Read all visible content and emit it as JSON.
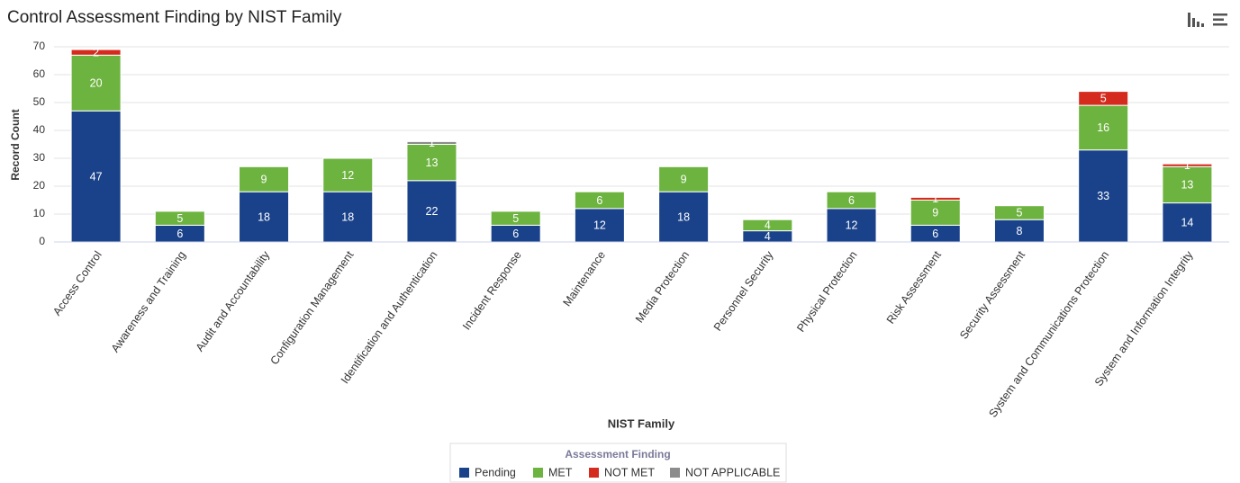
{
  "chart_data": {
    "type": "stacked_bar",
    "title": "Control Assessment Finding by NIST Family",
    "x_label": "NIST Family",
    "y_label": "Record Count",
    "legend_title": "Assessment Finding",
    "categories": [
      "Access Control",
      "Awareness and Training",
      "Audit and Accountability",
      "Configuration Management",
      "Identification and Authentication",
      "Incident Response",
      "Maintenance",
      "Media Protection",
      "Personnel Security",
      "Physical Protection",
      "Risk Assessment",
      "Security Assessment",
      "System and Communications Protection",
      "System and Information Integrity"
    ],
    "series": [
      {
        "name": "Pending",
        "color": "#1a428a",
        "values": [
          47,
          6,
          18,
          18,
          22,
          6,
          12,
          18,
          4,
          12,
          6,
          8,
          33,
          14
        ]
      },
      {
        "name": "MET",
        "color": "#6db33f",
        "values": [
          20,
          5,
          9,
          12,
          13,
          5,
          6,
          9,
          4,
          6,
          9,
          5,
          16,
          13
        ]
      },
      {
        "name": "NOT MET",
        "color": "#d52b1e",
        "values": [
          2,
          null,
          null,
          null,
          null,
          null,
          null,
          null,
          null,
          null,
          1,
          null,
          5,
          1
        ]
      },
      {
        "name": "NOT APPLICABLE",
        "color": "#8c8c8c",
        "values": [
          null,
          null,
          null,
          null,
          1,
          null,
          null,
          null,
          null,
          null,
          null,
          null,
          null,
          null
        ]
      }
    ],
    "ylim": [
      0,
      70
    ],
    "yticks": [
      0,
      10,
      20,
      30,
      40,
      50,
      60,
      70
    ],
    "grid": true
  }
}
